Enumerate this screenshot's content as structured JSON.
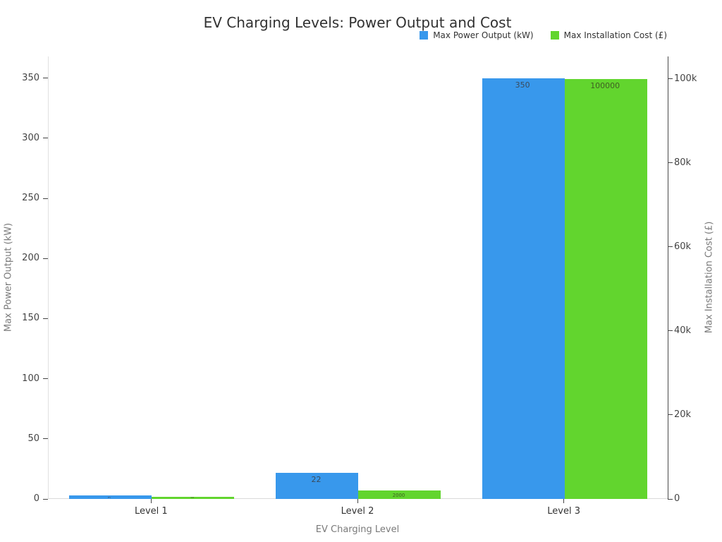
{
  "chart_data": {
    "type": "bar",
    "title": "EV Charging Levels: Power Output and Cost",
    "xlabel": "EV Charging Level",
    "ylabel_left": "Max Power Output (kW)",
    "ylabel_right": "Max Installation Cost (£)",
    "categories": [
      "Level 1",
      "Level 2",
      "Level 3"
    ],
    "series": [
      {
        "name": "Max Power Output (kW)",
        "axis": "left",
        "color": "#3898ec",
        "label_color": "#3a4a5a",
        "values": [
          3,
          22,
          350
        ],
        "value_labels": [
          "3",
          "22",
          "350"
        ]
      },
      {
        "name": "Max Installation Cost (£)",
        "axis": "right",
        "color": "#62d52e",
        "label_color": "#3f5e22",
        "values": [
          500,
          2000,
          100000
        ],
        "value_labels": [
          "500",
          "2000",
          "100000"
        ]
      }
    ],
    "left_axis": {
      "max": 368,
      "ticks": [
        0,
        50,
        100,
        150,
        200,
        250,
        300,
        350
      ]
    },
    "right_axis": {
      "max": 105300,
      "ticks": [
        0,
        20000,
        40000,
        60000,
        80000,
        100000
      ],
      "tick_labels": [
        "0",
        "20k",
        "40k",
        "60k",
        "80k",
        "100k"
      ]
    },
    "legend_position": "top-right",
    "grid": false,
    "colors": {
      "title": "#323232",
      "tick_label": "#444444",
      "axis_title": "#7a7a7a",
      "spine_left": "#e0e0e0",
      "spine_right": "#4a4a4a",
      "zero_line": "#d9d9d9",
      "tick_mark": "#444444"
    }
  }
}
